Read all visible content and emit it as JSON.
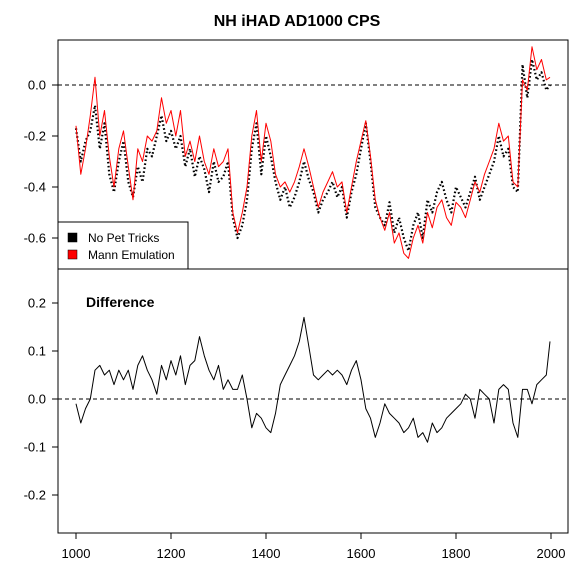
{
  "chart_data": [
    {
      "type": "line",
      "title": "NH iHAD AD1000 CPS",
      "xlim": [
        1000,
        1998
      ],
      "ylim": [
        -0.71,
        0.2
      ],
      "yticks": [
        -0.6,
        -0.4,
        -0.2,
        0.0
      ],
      "ytick_labels": [
        "-0.6",
        "-0.4",
        "-0.2",
        "0.0"
      ],
      "reference_line": 0.0,
      "legend": {
        "placement": "bottom-left",
        "entries": [
          "No Pet Tricks",
          "Mann Emulation"
        ]
      },
      "series": [
        {
          "name": "No Pet Tricks",
          "color": "#000000",
          "style": "dotted",
          "x": [
            1000,
            1010,
            1020,
            1030,
            1040,
            1050,
            1060,
            1070,
            1080,
            1090,
            1100,
            1110,
            1120,
            1130,
            1140,
            1150,
            1160,
            1170,
            1180,
            1190,
            1200,
            1210,
            1220,
            1230,
            1240,
            1250,
            1260,
            1270,
            1280,
            1290,
            1300,
            1310,
            1320,
            1330,
            1340,
            1350,
            1360,
            1370,
            1380,
            1390,
            1400,
            1410,
            1420,
            1430,
            1440,
            1450,
            1460,
            1470,
            1480,
            1490,
            1500,
            1510,
            1520,
            1530,
            1540,
            1550,
            1560,
            1570,
            1580,
            1590,
            1600,
            1610,
            1620,
            1630,
            1640,
            1650,
            1660,
            1670,
            1680,
            1690,
            1700,
            1710,
            1720,
            1730,
            1740,
            1750,
            1760,
            1770,
            1780,
            1790,
            1800,
            1810,
            1820,
            1830,
            1840,
            1850,
            1860,
            1870,
            1880,
            1890,
            1900,
            1910,
            1920,
            1930,
            1940,
            1950,
            1960,
            1970,
            1980,
            1990,
            1998
          ],
          "values": [
            -0.17,
            -0.3,
            -0.22,
            -0.18,
            -0.08,
            -0.25,
            -0.15,
            -0.35,
            -0.42,
            -0.3,
            -0.22,
            -0.38,
            -0.44,
            -0.32,
            -0.38,
            -0.25,
            -0.28,
            -0.2,
            -0.12,
            -0.22,
            -0.18,
            -0.25,
            -0.2,
            -0.32,
            -0.25,
            -0.36,
            -0.28,
            -0.33,
            -0.42,
            -0.3,
            -0.38,
            -0.36,
            -0.3,
            -0.52,
            -0.6,
            -0.55,
            -0.45,
            -0.25,
            -0.15,
            -0.35,
            -0.2,
            -0.28,
            -0.38,
            -0.45,
            -0.4,
            -0.48,
            -0.44,
            -0.38,
            -0.3,
            -0.37,
            -0.42,
            -0.5,
            -0.45,
            -0.42,
            -0.38,
            -0.44,
            -0.4,
            -0.52,
            -0.42,
            -0.35,
            -0.25,
            -0.15,
            -0.3,
            -0.48,
            -0.52,
            -0.55,
            -0.46,
            -0.58,
            -0.52,
            -0.6,
            -0.65,
            -0.55,
            -0.5,
            -0.6,
            -0.45,
            -0.5,
            -0.42,
            -0.38,
            -0.45,
            -0.5,
            -0.4,
            -0.44,
            -0.48,
            -0.42,
            -0.36,
            -0.45,
            -0.4,
            -0.35,
            -0.3,
            -0.2,
            -0.28,
            -0.25,
            -0.4,
            -0.42,
            0.08,
            -0.05,
            0.1,
            0.02,
            0.05,
            -0.02,
            0.0
          ]
        },
        {
          "name": "Mann Emulation",
          "color": "#ff0000",
          "style": "solid",
          "x": [
            1000,
            1010,
            1020,
            1030,
            1040,
            1050,
            1060,
            1070,
            1080,
            1090,
            1100,
            1110,
            1120,
            1130,
            1140,
            1150,
            1160,
            1170,
            1180,
            1190,
            1200,
            1210,
            1220,
            1230,
            1240,
            1250,
            1260,
            1270,
            1280,
            1290,
            1300,
            1310,
            1320,
            1330,
            1340,
            1350,
            1360,
            1370,
            1380,
            1390,
            1400,
            1410,
            1420,
            1430,
            1440,
            1450,
            1460,
            1470,
            1480,
            1490,
            1500,
            1510,
            1520,
            1530,
            1540,
            1550,
            1560,
            1570,
            1580,
            1590,
            1600,
            1610,
            1620,
            1630,
            1640,
            1650,
            1660,
            1670,
            1680,
            1690,
            1700,
            1710,
            1720,
            1730,
            1740,
            1750,
            1760,
            1770,
            1780,
            1790,
            1800,
            1810,
            1820,
            1830,
            1840,
            1850,
            1860,
            1870,
            1880,
            1890,
            1900,
            1910,
            1920,
            1930,
            1940,
            1950,
            1960,
            1970,
            1980,
            1990,
            1998
          ],
          "values": [
            -0.16,
            -0.35,
            -0.25,
            -0.12,
            0.03,
            -0.2,
            -0.1,
            -0.28,
            -0.4,
            -0.25,
            -0.18,
            -0.32,
            -0.45,
            -0.25,
            -0.3,
            -0.2,
            -0.22,
            -0.18,
            -0.05,
            -0.15,
            -0.1,
            -0.2,
            -0.1,
            -0.28,
            -0.22,
            -0.3,
            -0.2,
            -0.3,
            -0.35,
            -0.25,
            -0.32,
            -0.3,
            -0.25,
            -0.5,
            -0.58,
            -0.5,
            -0.4,
            -0.2,
            -0.1,
            -0.3,
            -0.15,
            -0.22,
            -0.35,
            -0.4,
            -0.38,
            -0.42,
            -0.38,
            -0.32,
            -0.25,
            -0.32,
            -0.4,
            -0.48,
            -0.42,
            -0.38,
            -0.34,
            -0.4,
            -0.38,
            -0.5,
            -0.4,
            -0.3,
            -0.22,
            -0.14,
            -0.28,
            -0.45,
            -0.52,
            -0.57,
            -0.5,
            -0.62,
            -0.58,
            -0.66,
            -0.68,
            -0.6,
            -0.55,
            -0.62,
            -0.5,
            -0.56,
            -0.48,
            -0.45,
            -0.52,
            -0.55,
            -0.46,
            -0.48,
            -0.52,
            -0.45,
            -0.38,
            -0.42,
            -0.35,
            -0.3,
            -0.25,
            -0.15,
            -0.22,
            -0.2,
            -0.38,
            -0.4,
            0.02,
            -0.02,
            0.15,
            0.06,
            0.1,
            0.02,
            0.03
          ]
        }
      ]
    },
    {
      "type": "line",
      "title": "Difference",
      "xlim": [
        1000,
        1998
      ],
      "ylim": [
        -0.27,
        0.25
      ],
      "yticks": [
        -0.2,
        -0.1,
        0.0,
        0.1,
        0.2
      ],
      "ytick_labels": [
        "-0.2",
        "-0.1",
        "0.0",
        "0.1",
        "0.2"
      ],
      "xticks": [
        1000,
        1200,
        1400,
        1600,
        1800,
        2000
      ],
      "xtick_labels": [
        "1000",
        "1200",
        "1400",
        "1600",
        "1800",
        "2000"
      ],
      "reference_line": 0.0,
      "series": [
        {
          "color": "#000000",
          "style": "solid",
          "x": [
            1000,
            1010,
            1020,
            1030,
            1040,
            1050,
            1060,
            1070,
            1080,
            1090,
            1100,
            1110,
            1120,
            1130,
            1140,
            1150,
            1160,
            1170,
            1180,
            1190,
            1200,
            1210,
            1220,
            1230,
            1240,
            1250,
            1260,
            1270,
            1280,
            1290,
            1300,
            1310,
            1320,
            1330,
            1340,
            1350,
            1360,
            1370,
            1380,
            1390,
            1400,
            1410,
            1420,
            1430,
            1440,
            1450,
            1460,
            1470,
            1480,
            1490,
            1500,
            1510,
            1520,
            1530,
            1540,
            1550,
            1560,
            1570,
            1580,
            1590,
            1600,
            1610,
            1620,
            1630,
            1640,
            1650,
            1660,
            1670,
            1680,
            1690,
            1700,
            1710,
            1720,
            1730,
            1740,
            1750,
            1760,
            1770,
            1780,
            1790,
            1800,
            1810,
            1820,
            1830,
            1840,
            1850,
            1860,
            1870,
            1880,
            1890,
            1900,
            1910,
            1920,
            1930,
            1940,
            1950,
            1960,
            1970,
            1980,
            1990,
            1998
          ],
          "values": [
            -0.01,
            -0.05,
            -0.02,
            0.0,
            0.06,
            0.07,
            0.05,
            0.06,
            0.03,
            0.06,
            0.04,
            0.06,
            0.02,
            0.07,
            0.09,
            0.06,
            0.04,
            0.01,
            0.07,
            0.04,
            0.08,
            0.05,
            0.09,
            0.03,
            0.07,
            0.08,
            0.13,
            0.09,
            0.06,
            0.04,
            0.07,
            0.02,
            0.04,
            0.02,
            0.02,
            0.05,
            0.0,
            -0.06,
            -0.03,
            -0.04,
            -0.06,
            -0.07,
            -0.03,
            0.03,
            0.05,
            0.07,
            0.09,
            0.12,
            0.17,
            0.11,
            0.05,
            0.04,
            0.05,
            0.06,
            0.05,
            0.06,
            0.05,
            0.03,
            0.06,
            0.08,
            0.04,
            -0.02,
            -0.04,
            -0.08,
            -0.05,
            -0.01,
            -0.03,
            -0.04,
            -0.05,
            -0.07,
            -0.06,
            -0.04,
            -0.08,
            -0.07,
            -0.09,
            -0.05,
            -0.07,
            -0.06,
            -0.04,
            -0.03,
            -0.02,
            -0.01,
            0.01,
            0.0,
            -0.04,
            0.02,
            0.01,
            0.0,
            -0.05,
            0.02,
            0.03,
            0.02,
            -0.05,
            -0.08,
            0.02,
            0.02,
            -0.01,
            0.03,
            0.04,
            0.05,
            0.12
          ]
        }
      ]
    }
  ]
}
